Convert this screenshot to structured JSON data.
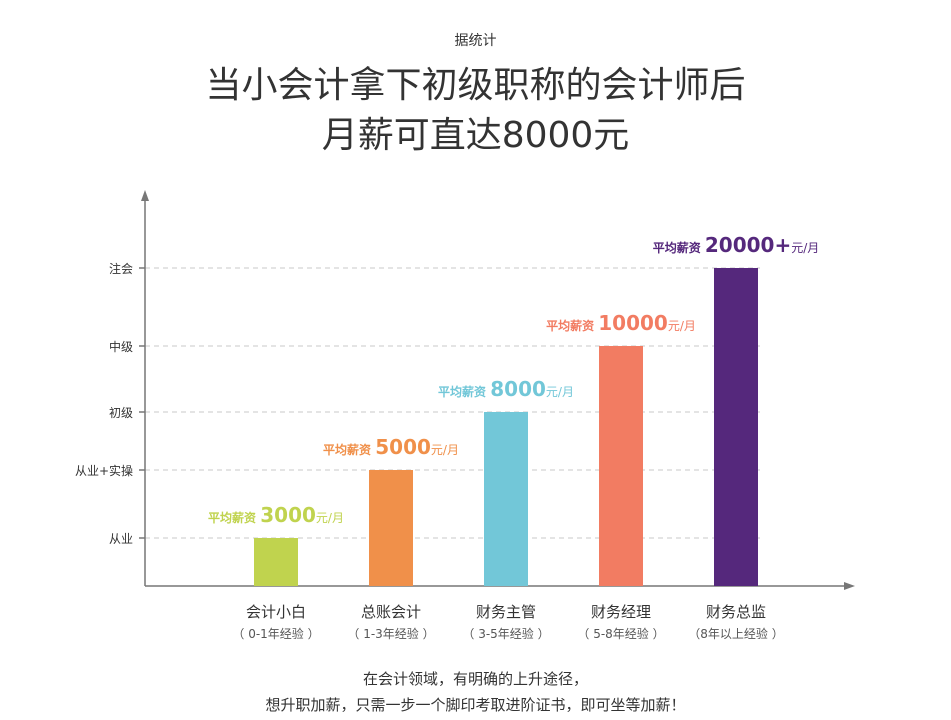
{
  "header": {
    "eyebrow": "据统计",
    "headline_line1": "当小会计拿下初级职称的会计师后",
    "headline_line2": "月薪可直达8000元"
  },
  "footer": {
    "line1": "在会计领域，有明确的上升途径，",
    "line2": "想升职加薪，只需一步一个脚印考取进阶证书，即可坐等加薪！"
  },
  "chart_data": {
    "type": "bar",
    "y_levels": [
      "从业",
      "从业+实操",
      "初级",
      "中级",
      "注会"
    ],
    "salary_prefix": "平均薪资",
    "salary_unit": "元/月",
    "grid": "dashed lines at y levels",
    "bars": [
      {
        "role": "会计小白",
        "experience": "（ 0-1年经验 ）",
        "salary": "3000",
        "level": "从业",
        "color": "#c0d34e"
      },
      {
        "role": "总账会计",
        "experience": "（ 1-3年经验 ）",
        "salary": "5000",
        "level": "从业+实操",
        "color": "#f0904a"
      },
      {
        "role": "财务主管",
        "experience": "（ 3-5年经验 ）",
        "salary": "8000",
        "level": "初级",
        "color": "#72c7d8"
      },
      {
        "role": "财务经理",
        "experience": "（ 5-8年经验 ）",
        "salary": "10000",
        "level": "中级",
        "color": "#f27c62"
      },
      {
        "role": "财务总监",
        "experience": "（8年以上经验 ）",
        "salary": "20000+",
        "level": "注会",
        "color": "#55287c"
      }
    ]
  }
}
